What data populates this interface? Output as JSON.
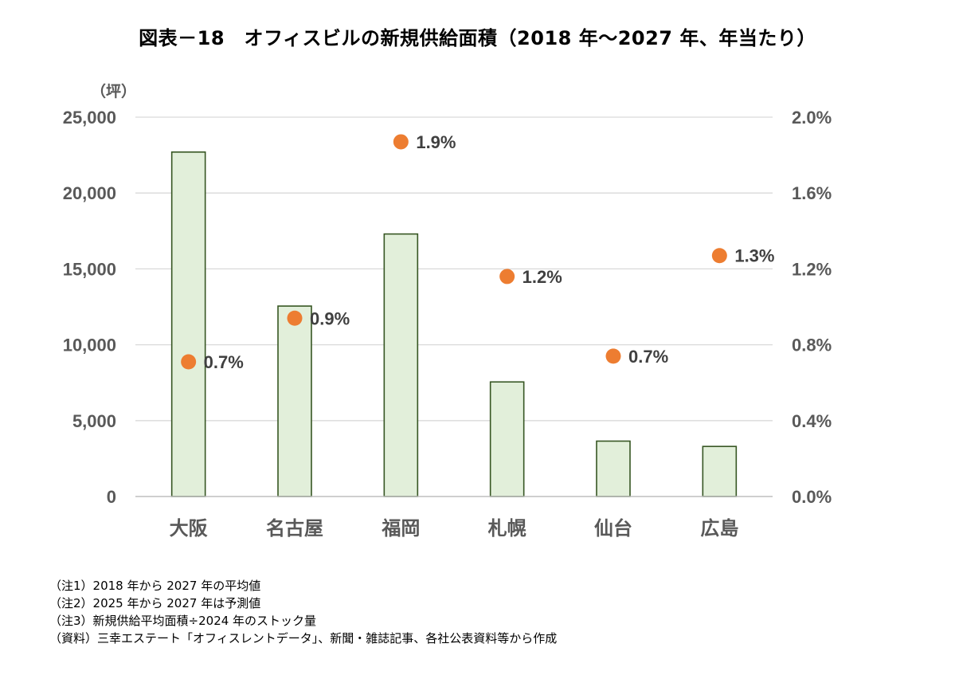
{
  "title": "図表－18　オフィスビルの新規供給面積（2018 年～2027 年、年当たり）",
  "chart_data": {
    "type": "bar",
    "categories": [
      "大阪",
      "名古屋",
      "福岡",
      "札幌",
      "仙台",
      "広島"
    ],
    "series": [
      {
        "type": "bar",
        "axis": "left",
        "values": [
          22700,
          12550,
          17300,
          7550,
          3650,
          3300
        ],
        "color": "#E2EFDA",
        "border_color": "#375623"
      },
      {
        "type": "scatter",
        "axis": "right",
        "values": [
          0.71,
          0.94,
          1.87,
          1.16,
          0.74,
          1.27
        ],
        "labels": [
          "0.7%",
          "0.9%",
          "1.9%",
          "1.2%",
          "0.7%",
          "1.3%"
        ],
        "color": "#ED7D31"
      }
    ],
    "ylabel": "（坪）",
    "ylim": [
      0,
      25000
    ],
    "y_ticks": [
      0,
      5000,
      10000,
      15000,
      20000,
      25000
    ],
    "y_tick_labels": [
      "0",
      "5,000",
      "10,000",
      "15,000",
      "20,000",
      "25,000"
    ],
    "y2lim": [
      0,
      2.0
    ],
    "y2_ticks": [
      0,
      0.4,
      0.8,
      1.2,
      1.6,
      2.0
    ],
    "y2_tick_labels": [
      "0.0%",
      "0.4%",
      "0.8%",
      "1.2%",
      "1.6%",
      "2.0%"
    ],
    "grid": true,
    "gridline_color": "#D9D9D9",
    "legend": "none"
  },
  "notes": [
    "（注1）2018 年から 2027 年の平均値",
    "（注2）2025 年から 2027 年は予測値",
    "（注3）新規供給平均面積÷2024 年のストック量",
    "（資料）三幸エステート「オフィスレントデータ」、新聞・雑誌記事、各社公表資料等から作成"
  ]
}
